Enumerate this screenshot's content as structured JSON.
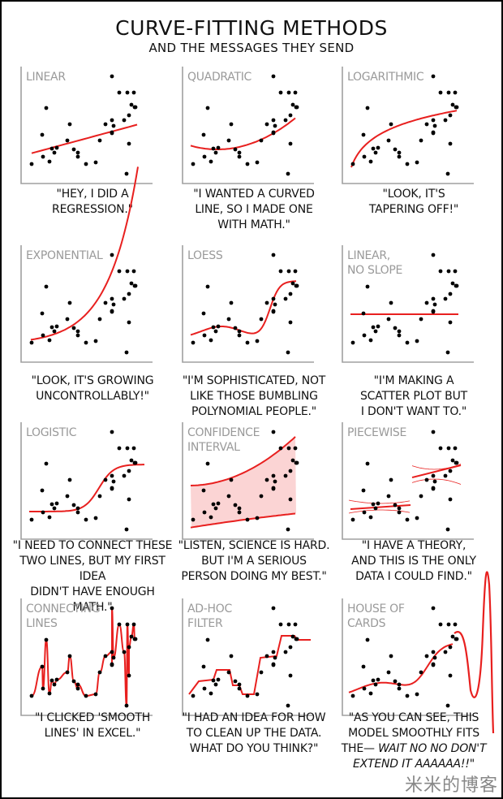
{
  "title": "CURVE-FITTING METHODS",
  "subtitle": "AND THE MESSAGES THEY SEND",
  "watermark": "米米的博客",
  "colors": {
    "fit": "#e8201f",
    "band": "#fbd4d4",
    "axis": "#a0a0a0",
    "point": "#000000",
    "label": "#9a9a9a"
  },
  "panels": [
    {
      "label": "LINEAR",
      "caption_lines": [
        "\"HEY, I DID A",
        "REGRESSION.\""
      ]
    },
    {
      "label": "QUADRATIC",
      "caption_lines": [
        "\"I WANTED A CURVED",
        "LINE, SO I MADE ONE",
        "WITH MATH.\""
      ]
    },
    {
      "label": "LOGARITHMIC",
      "caption_lines": [
        "\"LOOK, IT'S",
        "TAPERING OFF!\""
      ]
    },
    {
      "label": "EXPONENTIAL",
      "caption_lines": [
        "\"LOOK, IT'S GROWING",
        "UNCONTROLLABLY!\""
      ]
    },
    {
      "label": "LOESS",
      "caption_lines": [
        "\"I'M SOPHISTICATED, NOT",
        "LIKE THOSE BUMBLING",
        "POLYNOMIAL PEOPLE.\""
      ]
    },
    {
      "label": "LINEAR,",
      "label2": "NO SLOPE",
      "caption_lines": [
        "\"I'M MAKING A",
        "SCATTER PLOT BUT",
        "I DON'T WANT TO.\""
      ]
    },
    {
      "label": "LOGISTIC",
      "caption_lines": [
        "\"I NEED TO CONNECT THESE",
        "TWO LINES, BUT MY FIRST IDEA",
        "DIDN'T HAVE ENOUGH MATH.\""
      ]
    },
    {
      "label": "CONFIDENCE",
      "label2": "INTERVAL",
      "caption_lines": [
        "\"LISTEN, SCIENCE IS HARD.",
        "BUT I'M A SERIOUS",
        "PERSON DOING MY BEST.\""
      ]
    },
    {
      "label": "PIECEWISE",
      "caption_lines": [
        "\"I HAVE A THEORY,",
        "AND THIS IS THE ONLY",
        "DATA I COULD FIND.\""
      ]
    },
    {
      "label": "CONNECTING",
      "label2": "LINES",
      "caption_lines": [
        "\"I CLICKED 'SMOOTH",
        "LINES' IN EXCEL.\""
      ]
    },
    {
      "label": "AD-HOC",
      "label2": "FILTER",
      "caption_lines": [
        "\"I HAD AN IDEA FOR HOW",
        "TO CLEAN UP THE DATA.",
        "WHAT DO YOU THINK?\""
      ]
    },
    {
      "label": "HOUSE OF",
      "label2": "CARDS",
      "caption_lines": [
        "\"AS YOU CAN SEE, THIS",
        "MODEL SMOOTHLY FITS",
        "THE— ",
        "EXTEND IT AAAAAA!!\""
      ],
      "caption_italic": "WAIT NO NO DON'T"
    }
  ],
  "chart_data": {
    "type": "scatter",
    "title": "Curve-Fitting Methods and the Messages They Send",
    "note": "Same scatter data in all 12 panels; coordinates in plot space x 0-150, y 0-130 (y up), estimated from pixels",
    "points": [
      [
        5,
        20
      ],
      [
        23,
        89
      ],
      [
        18,
        56
      ],
      [
        19,
        29
      ],
      [
        27,
        23
      ],
      [
        30,
        39
      ],
      [
        33,
        34
      ],
      [
        36,
        40
      ],
      [
        49,
        49
      ],
      [
        52,
        69
      ],
      [
        57,
        38
      ],
      [
        62,
        29
      ],
      [
        62,
        34
      ],
      [
        72,
        20
      ],
      [
        84,
        22
      ],
      [
        89,
        49
      ],
      [
        96,
        69
      ],
      [
        104,
        74
      ],
      [
        104,
        59
      ],
      [
        106,
        67
      ],
      [
        104,
        58
      ],
      [
        119,
        74
      ],
      [
        125,
        45
      ],
      [
        123,
        108
      ],
      [
        113,
        108
      ],
      [
        131,
        108
      ],
      [
        132,
        90
      ],
      [
        125,
        80
      ],
      [
        128,
        93
      ],
      [
        133,
        90
      ],
      [
        104,
        128
      ],
      [
        122,
        8
      ]
    ],
    "series": [
      {
        "name": "LINEAR",
        "fit": "straight line rising from ~32 to ~72"
      },
      {
        "name": "QUADRATIC",
        "fit": "parabola min ~38 near x=40, rising to ~85 at x=132"
      },
      {
        "name": "LOGARITHMIC",
        "fit": "log curve from ~13 to ~80"
      },
      {
        "name": "EXPONENTIAL",
        "fit": "exp curve from ~23 to ~120"
      },
      {
        "name": "LOESS",
        "fit": "wavy smooth curve, plateaus ~38, ~32, then ~100"
      },
      {
        "name": "LINEAR, NO SLOPE",
        "fit": "horizontal line at ~55"
      },
      {
        "name": "LOGISTIC",
        "fit": "sigmoid from ~30 to ~88"
      },
      {
        "name": "CONFIDENCE INTERVAL",
        "fit": "shaded band lower ~10-32, upper ~68-128"
      },
      {
        "name": "PIECEWISE",
        "fit": "two line segments with thin confidence curves"
      },
      {
        "name": "CONNECTING LINES",
        "fit": "smooth spline through every point with wild overshoots"
      },
      {
        "name": "AD-HOC FILTER",
        "fit": "stepwise plateau curve"
      },
      {
        "name": "HOUSE OF CARDS",
        "fit": "polynomial that oscillates wildly beyond the data range"
      }
    ]
  }
}
